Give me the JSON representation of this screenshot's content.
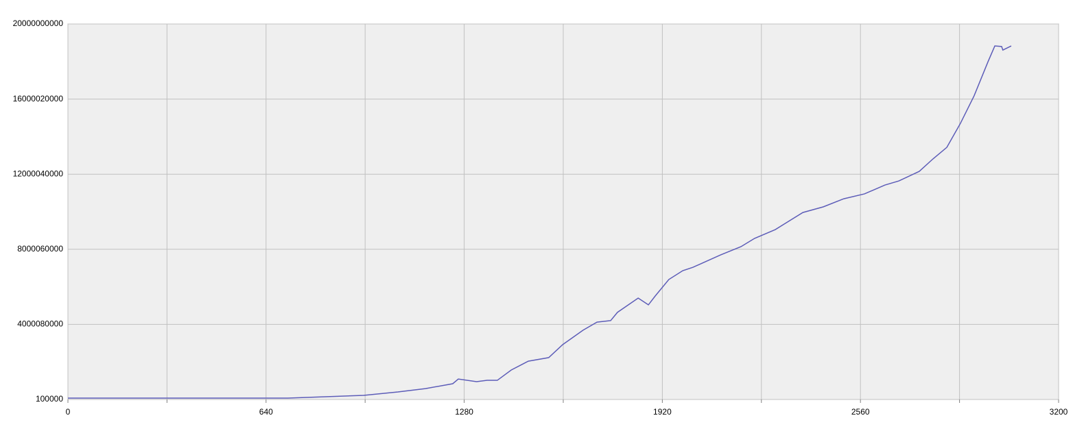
{
  "chart_data": {
    "type": "line",
    "x": [
      0,
      320,
      640,
      710,
      955,
      1066,
      1155,
      1243,
      1261,
      1320,
      1354,
      1387,
      1432,
      1487,
      1553,
      1598,
      1664,
      1709,
      1753,
      1775,
      1842,
      1875,
      1897,
      1941,
      1986,
      2019,
      2108,
      2174,
      2218,
      2285,
      2374,
      2440,
      2506,
      2573,
      2639,
      2684,
      2750,
      2794,
      2839,
      2883,
      2927,
      2972,
      2994,
      3016,
      3020,
      3047
    ],
    "series": [
      {
        "color": "#5c5cb8",
        "values": [
          73000000,
          73000000,
          73000000,
          73000000,
          220000000,
          400000000,
          580000000,
          840000000,
          1090000000,
          950000000,
          1020000000,
          1020000000,
          1570000000,
          2040000000,
          2230000000,
          2920000000,
          3690000000,
          4120000000,
          4200000000,
          4640000000,
          5400000000,
          5040000000,
          5510000000,
          6390000000,
          6860000000,
          7040000000,
          7700000000,
          8140000000,
          8580000000,
          9050000000,
          9960000000,
          10260000000,
          10690000000,
          10950000000,
          11420000000,
          11640000000,
          12150000000,
          12810000000,
          13430000000,
          14710000000,
          16170000000,
          17990000000,
          18830000000,
          18800000000,
          18610000000,
          18830000000
        ]
      }
    ],
    "xlim": [
      0,
      3200
    ],
    "xticks": [
      0,
      640,
      1280,
      1920,
      2560,
      3200
    ],
    "minor_xticks": [
      320,
      960,
      1600,
      2240,
      2880
    ],
    "ylim": [
      100000,
      20000000000
    ],
    "yticks": [
      100000,
      4000080000,
      8000060000,
      12000040000,
      16000020000,
      20000000000
    ],
    "grid": true
  }
}
